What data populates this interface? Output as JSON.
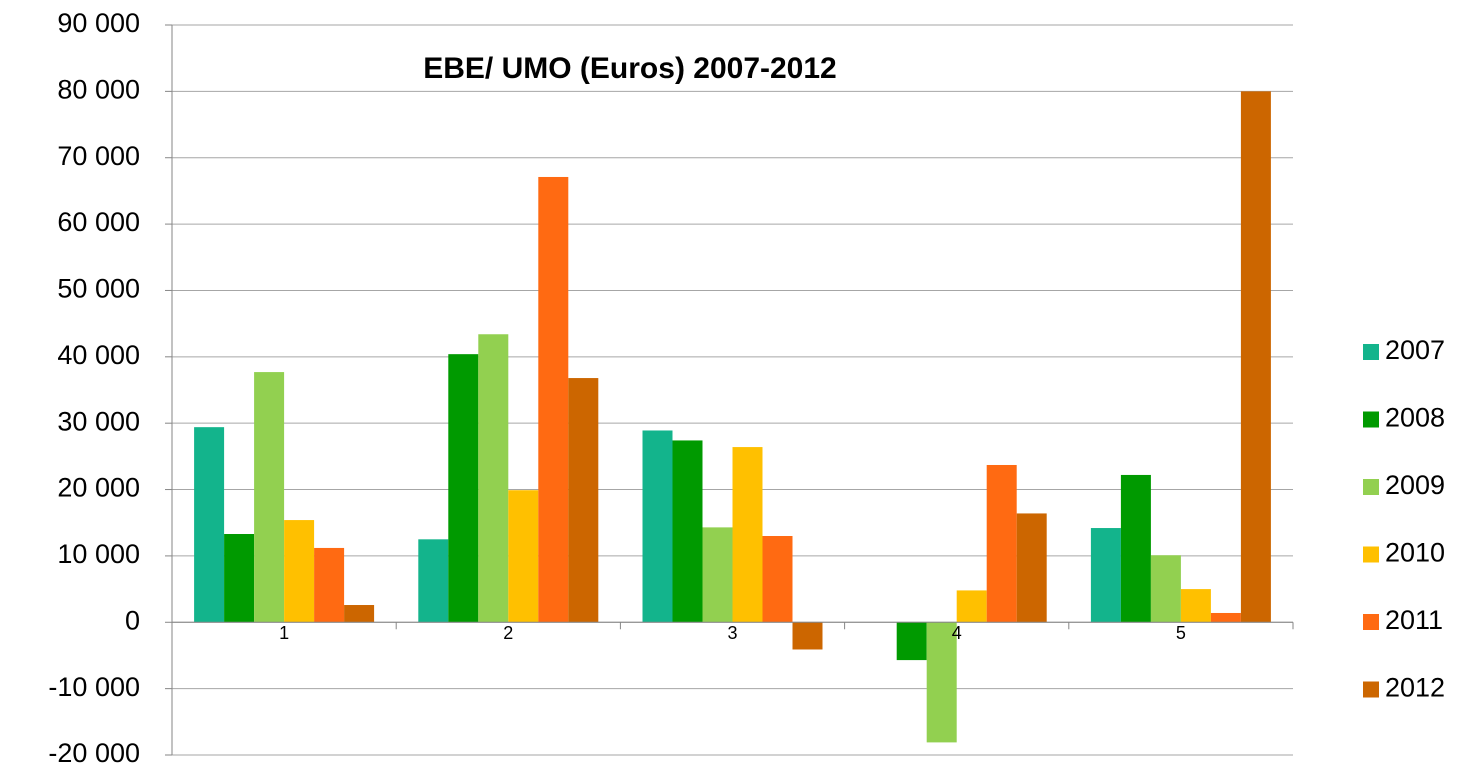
{
  "chart_data": {
    "type": "bar",
    "title": "EBE/ UMO (Euros) 2007-2012",
    "categories": [
      "1",
      "2",
      "3",
      "4",
      "5"
    ],
    "series": [
      {
        "name": "2007",
        "color": "#13b48c",
        "values": [
          29400,
          12500,
          28900,
          0,
          14200
        ]
      },
      {
        "name": "2008",
        "color": "#009a00",
        "values": [
          13300,
          40400,
          27400,
          -5700,
          22200
        ]
      },
      {
        "name": "2009",
        "color": "#92d050",
        "values": [
          37700,
          43400,
          14300,
          -18100,
          10100
        ]
      },
      {
        "name": "2010",
        "color": "#ffc000",
        "values": [
          15400,
          19900,
          26400,
          4800,
          5000
        ]
      },
      {
        "name": "2011",
        "color": "#ff6a12",
        "values": [
          11200,
          67100,
          13000,
          23700,
          1400
        ]
      },
      {
        "name": "2012",
        "color": "#cc6600",
        "values": [
          2600,
          36800,
          -4100,
          16400,
          80000
        ]
      }
    ],
    "ylim": [
      -20000,
      90000
    ],
    "yticks": [
      {
        "value": -20000,
        "label": "-20 000"
      },
      {
        "value": -10000,
        "label": "-10 000"
      },
      0,
      {
        "value": 10000,
        "label": "10 000"
      },
      {
        "value": 20000,
        "label": "20 000"
      },
      {
        "value": 30000,
        "label": "30 000"
      },
      {
        "value": 40000,
        "label": "40 000"
      },
      {
        "value": 50000,
        "label": "50 000"
      },
      {
        "value": 60000,
        "label": "60 000"
      },
      {
        "value": 70000,
        "label": "70 000"
      },
      {
        "value": 80000,
        "label": "80 000"
      },
      {
        "value": 90000,
        "label": "90 000"
      }
    ],
    "grid": true,
    "legend": "right"
  }
}
